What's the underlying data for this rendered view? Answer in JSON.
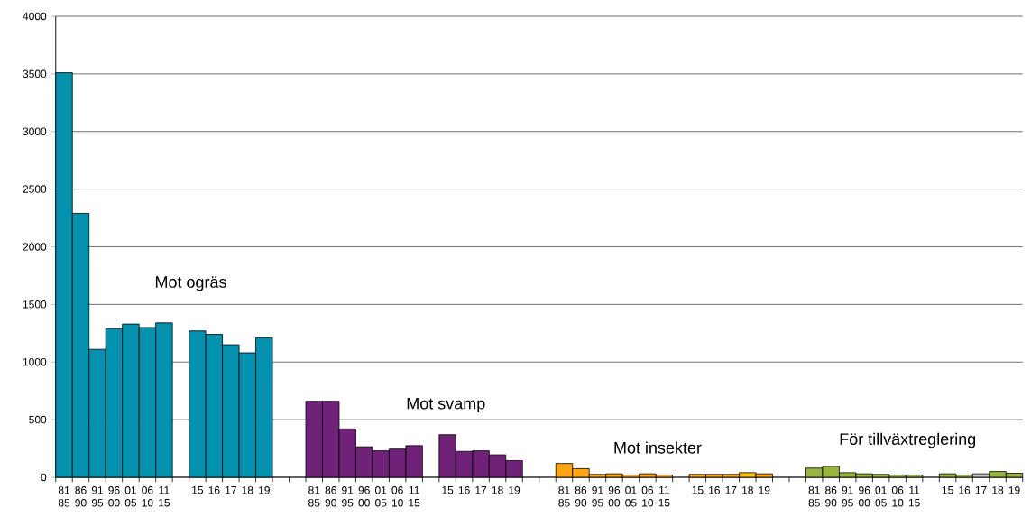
{
  "chart_data": {
    "type": "bar",
    "categories": [
      "81 85",
      "86 90",
      "91 95",
      "96 00",
      "01 05",
      "06 10",
      "11 15",
      null,
      "15",
      "16",
      "17",
      "18",
      "19",
      null,
      null,
      "81 85",
      "86 90",
      "91 95",
      "96 00",
      "01 05",
      "06 10",
      "11 15",
      null,
      "15",
      "16",
      "17",
      "18",
      "19",
      null,
      null,
      "81 85",
      "86 90",
      "91 95",
      "96 00",
      "01 05",
      "06 10",
      "11 15",
      null,
      "15",
      "16",
      "17",
      "18",
      "19",
      null,
      null,
      "81 85",
      "86 90",
      "91 95",
      "96 00",
      "01 05",
      "06 10",
      "11 15",
      null,
      "15",
      "16",
      "17",
      "18",
      "19"
    ],
    "values": [
      3510,
      2290,
      1110,
      1290,
      1330,
      1300,
      1340,
      null,
      1270,
      1240,
      1150,
      1080,
      1210,
      null,
      null,
      660,
      660,
      420,
      265,
      230,
      245,
      275,
      null,
      370,
      225,
      230,
      195,
      145,
      null,
      null,
      120,
      75,
      25,
      30,
      20,
      30,
      20,
      null,
      25,
      25,
      25,
      40,
      30,
      null,
      null,
      80,
      95,
      40,
      30,
      25,
      20,
      20,
      null,
      30,
      20,
      30,
      50,
      35
    ],
    "colors": [
      "#0391ad",
      "#0391ad",
      "#0391ad",
      "#0391ad",
      "#0391ad",
      "#0391ad",
      "#0391ad",
      null,
      "#0391ad",
      "#0391ad",
      "#0391ad",
      "#0391ad",
      "#0391ad",
      null,
      null,
      "#6f2277",
      "#6f2277",
      "#6f2277",
      "#6f2277",
      "#6f2277",
      "#6f2277",
      "#6f2277",
      null,
      "#6f2277",
      "#6f2277",
      "#6f2277",
      "#6f2277",
      "#6f2277",
      null,
      null,
      "#ffa515",
      "#ffa515",
      "#ffa515",
      "#ffa515",
      "#ffa515",
      "#ffa515",
      "#ffa515",
      null,
      "#ffa515",
      "#ffa515",
      "#ffa515",
      "#ffc20e",
      "#ffa515",
      null,
      null,
      "#99b53f",
      "#99b53f",
      "#99b53f",
      "#99b53f",
      "#99b53f",
      "#99b53f",
      "#99b53f",
      null,
      "#99b53f",
      "#99b53f",
      "#c8c8c8",
      "#99b53f",
      "#99b53f"
    ],
    "ylim": [
      0,
      4000
    ],
    "yticks": [
      0,
      500,
      1000,
      1500,
      2000,
      2500,
      3000,
      3500,
      4000
    ],
    "grid": "y",
    "annotations": [
      "Mot ogräs",
      "Mot svamp",
      "Mot insekter",
      "För tillväxtreglering"
    ]
  }
}
